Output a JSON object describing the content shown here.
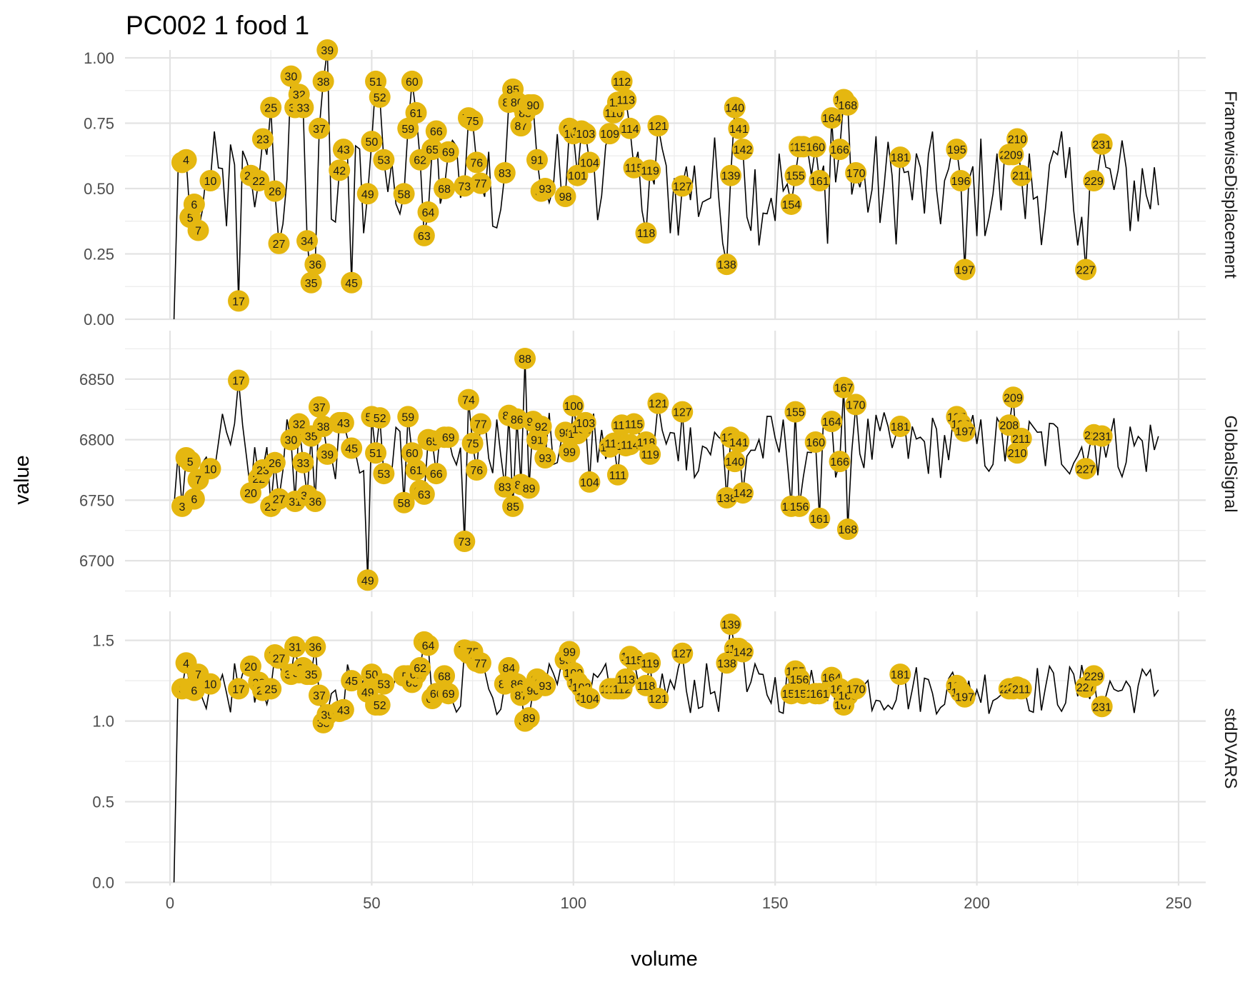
{
  "chart_data": {
    "type": "line",
    "title": "PC002  1  food  1",
    "xlabel": "volume",
    "ylabel": "value",
    "xlim": [
      1,
      245
    ],
    "x_ticks": [
      0,
      50,
      100,
      150,
      200,
      250
    ],
    "outlier_color": "#E5B710",
    "line_color": "#000000",
    "grid": true,
    "panels": [
      {
        "name": "FramewiseDisplacement",
        "ylim": [
          0,
          1.03
        ],
        "y_ticks": [
          0,
          0.25,
          0.5,
          0.75,
          1.0
        ],
        "y_tick_labels": [
          "0.00",
          "0.25",
          "0.50",
          "0.75",
          "1.00"
        ],
        "base": 0.5,
        "amp": 0.22,
        "min": 0.13,
        "max": 0.84,
        "start": 0,
        "points": [
          [
            3,
            0.6
          ],
          [
            4,
            0.61
          ],
          [
            5,
            0.39
          ],
          [
            6,
            0.44
          ],
          [
            7,
            0.34
          ],
          [
            10,
            0.53
          ],
          [
            17,
            0.07
          ],
          [
            20,
            0.55
          ],
          [
            22,
            0.53
          ],
          [
            23,
            0.69
          ],
          [
            25,
            0.81
          ],
          [
            26,
            0.49
          ],
          [
            27,
            0.29
          ],
          [
            30,
            0.93
          ],
          [
            31,
            0.81
          ],
          [
            32,
            0.86
          ],
          [
            33,
            0.81
          ],
          [
            34,
            0.3
          ],
          [
            35,
            0.14
          ],
          [
            36,
            0.21
          ],
          [
            37,
            0.73
          ],
          [
            38,
            0.91
          ],
          [
            39,
            1.03
          ],
          [
            42,
            0.57
          ],
          [
            43,
            0.65
          ],
          [
            45,
            0.14
          ],
          [
            49,
            0.48
          ],
          [
            50,
            0.68
          ],
          [
            51,
            0.91
          ],
          [
            52,
            0.85
          ],
          [
            53,
            0.61
          ],
          [
            58,
            0.48
          ],
          [
            59,
            0.73
          ],
          [
            60,
            0.91
          ],
          [
            61,
            0.79
          ],
          [
            62,
            0.61
          ],
          [
            63,
            0.32
          ],
          [
            64,
            0.41
          ],
          [
            65,
            0.65
          ],
          [
            66,
            0.72
          ],
          [
            68,
            0.5
          ],
          [
            69,
            0.64
          ],
          [
            73,
            0.51
          ],
          [
            74,
            0.77
          ],
          [
            75,
            0.76
          ],
          [
            76,
            0.6
          ],
          [
            77,
            0.52
          ],
          [
            83,
            0.56
          ],
          [
            84,
            0.83
          ],
          [
            85,
            0.88
          ],
          [
            86,
            0.83
          ],
          [
            87,
            0.74
          ],
          [
            88,
            0.79
          ],
          [
            89,
            0.82
          ],
          [
            90,
            0.82
          ],
          [
            91,
            0.61
          ],
          [
            92,
            0.49
          ],
          [
            93,
            0.5
          ],
          [
            98,
            0.47
          ],
          [
            99,
            0.73
          ],
          [
            100,
            0.71
          ],
          [
            101,
            0.55
          ],
          [
            102,
            0.72
          ],
          [
            103,
            0.71
          ],
          [
            104,
            0.6
          ],
          [
            109,
            0.71
          ],
          [
            110,
            0.79
          ],
          [
            111,
            0.83
          ],
          [
            112,
            0.91
          ],
          [
            113,
            0.84
          ],
          [
            114,
            0.73
          ],
          [
            115,
            0.58
          ],
          [
            118,
            0.33
          ],
          [
            119,
            0.57
          ],
          [
            121,
            0.74
          ],
          [
            127,
            0.51
          ],
          [
            138,
            0.21
          ],
          [
            139,
            0.55
          ],
          [
            140,
            0.81
          ],
          [
            141,
            0.73
          ],
          [
            142,
            0.65
          ],
          [
            154,
            0.44
          ],
          [
            155,
            0.55
          ],
          [
            156,
            0.66
          ],
          [
            157,
            0.66
          ],
          [
            160,
            0.66
          ],
          [
            161,
            0.53
          ],
          [
            164,
            0.77
          ],
          [
            166,
            0.65
          ],
          [
            167,
            0.84
          ],
          [
            168,
            0.82
          ],
          [
            170,
            0.56
          ],
          [
            181,
            0.62
          ],
          [
            195,
            0.65
          ],
          [
            196,
            0.53
          ],
          [
            197,
            0.19
          ],
          [
            208,
            0.63
          ],
          [
            209,
            0.63
          ],
          [
            210,
            0.69
          ],
          [
            211,
            0.55
          ],
          [
            227,
            0.19
          ],
          [
            229,
            0.53
          ],
          [
            231,
            0.67
          ]
        ]
      },
      {
        "name": "GlobalSignal",
        "ylim": [
          6670,
          6890
        ],
        "y_ticks": [
          6700,
          6750,
          6800,
          6850
        ],
        "y_tick_labels": [
          "6700",
          "6750",
          "6800",
          "6850"
        ],
        "base": 6795,
        "amp": 28,
        "min": 6678,
        "max": 6880,
        "start": 6745,
        "points": [
          [
            3,
            6745
          ],
          [
            4,
            6785
          ],
          [
            5,
            6782
          ],
          [
            6,
            6751
          ],
          [
            7,
            6767
          ],
          [
            10,
            6776
          ],
          [
            17,
            6849
          ],
          [
            20,
            6756
          ],
          [
            22,
            6768
          ],
          [
            23,
            6775
          ],
          [
            25,
            6745
          ],
          [
            26,
            6781
          ],
          [
            27,
            6751
          ],
          [
            30,
            6800
          ],
          [
            31,
            6749
          ],
          [
            32,
            6813
          ],
          [
            33,
            6781
          ],
          [
            34,
            6754
          ],
          [
            35,
            6803
          ],
          [
            36,
            6749
          ],
          [
            37,
            6827
          ],
          [
            38,
            6811
          ],
          [
            39,
            6788
          ],
          [
            42,
            6814
          ],
          [
            43,
            6814
          ],
          [
            45,
            6793
          ],
          [
            49,
            6684
          ],
          [
            50,
            6819
          ],
          [
            51,
            6789
          ],
          [
            52,
            6818
          ],
          [
            53,
            6772
          ],
          [
            58,
            6748
          ],
          [
            59,
            6819
          ],
          [
            60,
            6789
          ],
          [
            61,
            6775
          ],
          [
            62,
            6758
          ],
          [
            63,
            6755
          ],
          [
            64,
            6800
          ],
          [
            65,
            6799
          ],
          [
            66,
            6772
          ],
          [
            68,
            6802
          ],
          [
            69,
            6802
          ],
          [
            73,
            6716
          ],
          [
            74,
            6833
          ],
          [
            75,
            6797
          ],
          [
            76,
            6775
          ],
          [
            77,
            6813
          ],
          [
            83,
            6761
          ],
          [
            84,
            6820
          ],
          [
            85,
            6745
          ],
          [
            86,
            6817
          ],
          [
            87,
            6763
          ],
          [
            88,
            6867
          ],
          [
            89,
            6760
          ],
          [
            90,
            6815
          ],
          [
            91,
            6800
          ],
          [
            92,
            6811
          ],
          [
            93,
            6785
          ],
          [
            98,
            6806
          ],
          [
            99,
            6790
          ],
          [
            100,
            6828
          ],
          [
            101,
            6805
          ],
          [
            102,
            6809
          ],
          [
            103,
            6814
          ],
          [
            104,
            6765
          ],
          [
            109,
            6794
          ],
          [
            110,
            6797
          ],
          [
            111,
            6771
          ],
          [
            112,
            6812
          ],
          [
            113,
            6795
          ],
          [
            114,
            6796
          ],
          [
            115,
            6813
          ],
          [
            118,
            6798
          ],
          [
            119,
            6788
          ],
          [
            121,
            6830
          ],
          [
            127,
            6823
          ],
          [
            138,
            6752
          ],
          [
            139,
            6802
          ],
          [
            140,
            6782
          ],
          [
            141,
            6798
          ],
          [
            142,
            6756
          ],
          [
            154,
            6745
          ],
          [
            155,
            6823
          ],
          [
            156,
            6745
          ],
          [
            160,
            6798
          ],
          [
            161,
            6735
          ],
          [
            164,
            6815
          ],
          [
            166,
            6782
          ],
          [
            167,
            6843
          ],
          [
            168,
            6726
          ],
          [
            170,
            6829
          ],
          [
            181,
            6811
          ],
          [
            195,
            6819
          ],
          [
            196,
            6813
          ],
          [
            197,
            6807
          ],
          [
            208,
            6812
          ],
          [
            209,
            6835
          ],
          [
            210,
            6789
          ],
          [
            211,
            6801
          ],
          [
            227,
            6776
          ],
          [
            229,
            6804
          ],
          [
            231,
            6803
          ]
        ]
      },
      {
        "name": "stdDVARS",
        "ylim": [
          -0.02,
          1.68
        ],
        "y_ticks": [
          0,
          0.5,
          1.0,
          1.5
        ],
        "y_tick_labels": [
          "0.0",
          "0.5",
          "1.0",
          "1.5"
        ],
        "base": 1.2,
        "amp": 0.16,
        "min": 0.84,
        "max": 1.4,
        "start": 0,
        "points": [
          [
            3,
            1.2
          ],
          [
            4,
            1.36
          ],
          [
            5,
            1.2
          ],
          [
            6,
            1.19
          ],
          [
            7,
            1.29
          ],
          [
            10,
            1.23
          ],
          [
            17,
            1.2
          ],
          [
            20,
            1.34
          ],
          [
            22,
            1.24
          ],
          [
            23,
            1.19
          ],
          [
            25,
            1.2
          ],
          [
            26,
            1.41
          ],
          [
            27,
            1.39
          ],
          [
            30,
            1.29
          ],
          [
            31,
            1.46
          ],
          [
            32,
            1.3
          ],
          [
            33,
            1.33
          ],
          [
            34,
            1.29
          ],
          [
            35,
            1.29
          ],
          [
            36,
            1.46
          ],
          [
            37,
            1.16
          ],
          [
            38,
            0.99
          ],
          [
            39,
            1.04
          ],
          [
            42,
            1.06
          ],
          [
            43,
            1.07
          ],
          [
            45,
            1.25
          ],
          [
            49,
            1.18
          ],
          [
            50,
            1.29
          ],
          [
            51,
            1.1
          ],
          [
            52,
            1.1
          ],
          [
            53,
            1.23
          ],
          [
            58,
            1.28
          ],
          [
            59,
            1.28
          ],
          [
            60,
            1.24
          ],
          [
            61,
            1.29
          ],
          [
            62,
            1.33
          ],
          [
            63,
            1.49
          ],
          [
            64,
            1.47
          ],
          [
            65,
            1.14
          ],
          [
            66,
            1.17
          ],
          [
            68,
            1.28
          ],
          [
            69,
            1.17
          ],
          [
            73,
            1.44
          ],
          [
            74,
            1.42
          ],
          [
            75,
            1.43
          ],
          [
            76,
            1.37
          ],
          [
            77,
            1.36
          ],
          [
            83,
            1.23
          ],
          [
            84,
            1.33
          ],
          [
            85,
            1.24
          ],
          [
            86,
            1.23
          ],
          [
            87,
            1.16
          ],
          [
            88,
            1.0
          ],
          [
            89,
            1.02
          ],
          [
            90,
            1.19
          ],
          [
            91,
            1.26
          ],
          [
            92,
            1.24
          ],
          [
            93,
            1.22
          ],
          [
            98,
            1.38
          ],
          [
            99,
            1.43
          ],
          [
            100,
            1.3
          ],
          [
            101,
            1.24
          ],
          [
            102,
            1.21
          ],
          [
            103,
            1.15
          ],
          [
            104,
            1.14
          ],
          [
            109,
            1.2
          ],
          [
            110,
            1.2
          ],
          [
            111,
            1.2
          ],
          [
            112,
            1.2
          ],
          [
            113,
            1.26
          ],
          [
            114,
            1.4
          ],
          [
            115,
            1.38
          ],
          [
            118,
            1.22
          ],
          [
            119,
            1.36
          ],
          [
            121,
            1.14
          ],
          [
            127,
            1.42
          ],
          [
            138,
            1.36
          ],
          [
            139,
            1.6
          ],
          [
            140,
            1.45
          ],
          [
            141,
            1.45
          ],
          [
            142,
            1.43
          ],
          [
            154,
            1.17
          ],
          [
            155,
            1.31
          ],
          [
            156,
            1.26
          ],
          [
            157,
            1.17
          ],
          [
            160,
            1.17
          ],
          [
            161,
            1.17
          ],
          [
            164,
            1.27
          ],
          [
            166,
            1.2
          ],
          [
            167,
            1.1
          ],
          [
            168,
            1.16
          ],
          [
            170,
            1.2
          ],
          [
            181,
            1.29
          ],
          [
            195,
            1.22
          ],
          [
            196,
            1.18
          ],
          [
            197,
            1.15
          ],
          [
            208,
            1.2
          ],
          [
            209,
            1.2
          ],
          [
            210,
            1.21
          ],
          [
            211,
            1.2
          ],
          [
            227,
            1.21
          ],
          [
            229,
            1.28
          ],
          [
            231,
            1.09
          ]
        ]
      }
    ]
  }
}
